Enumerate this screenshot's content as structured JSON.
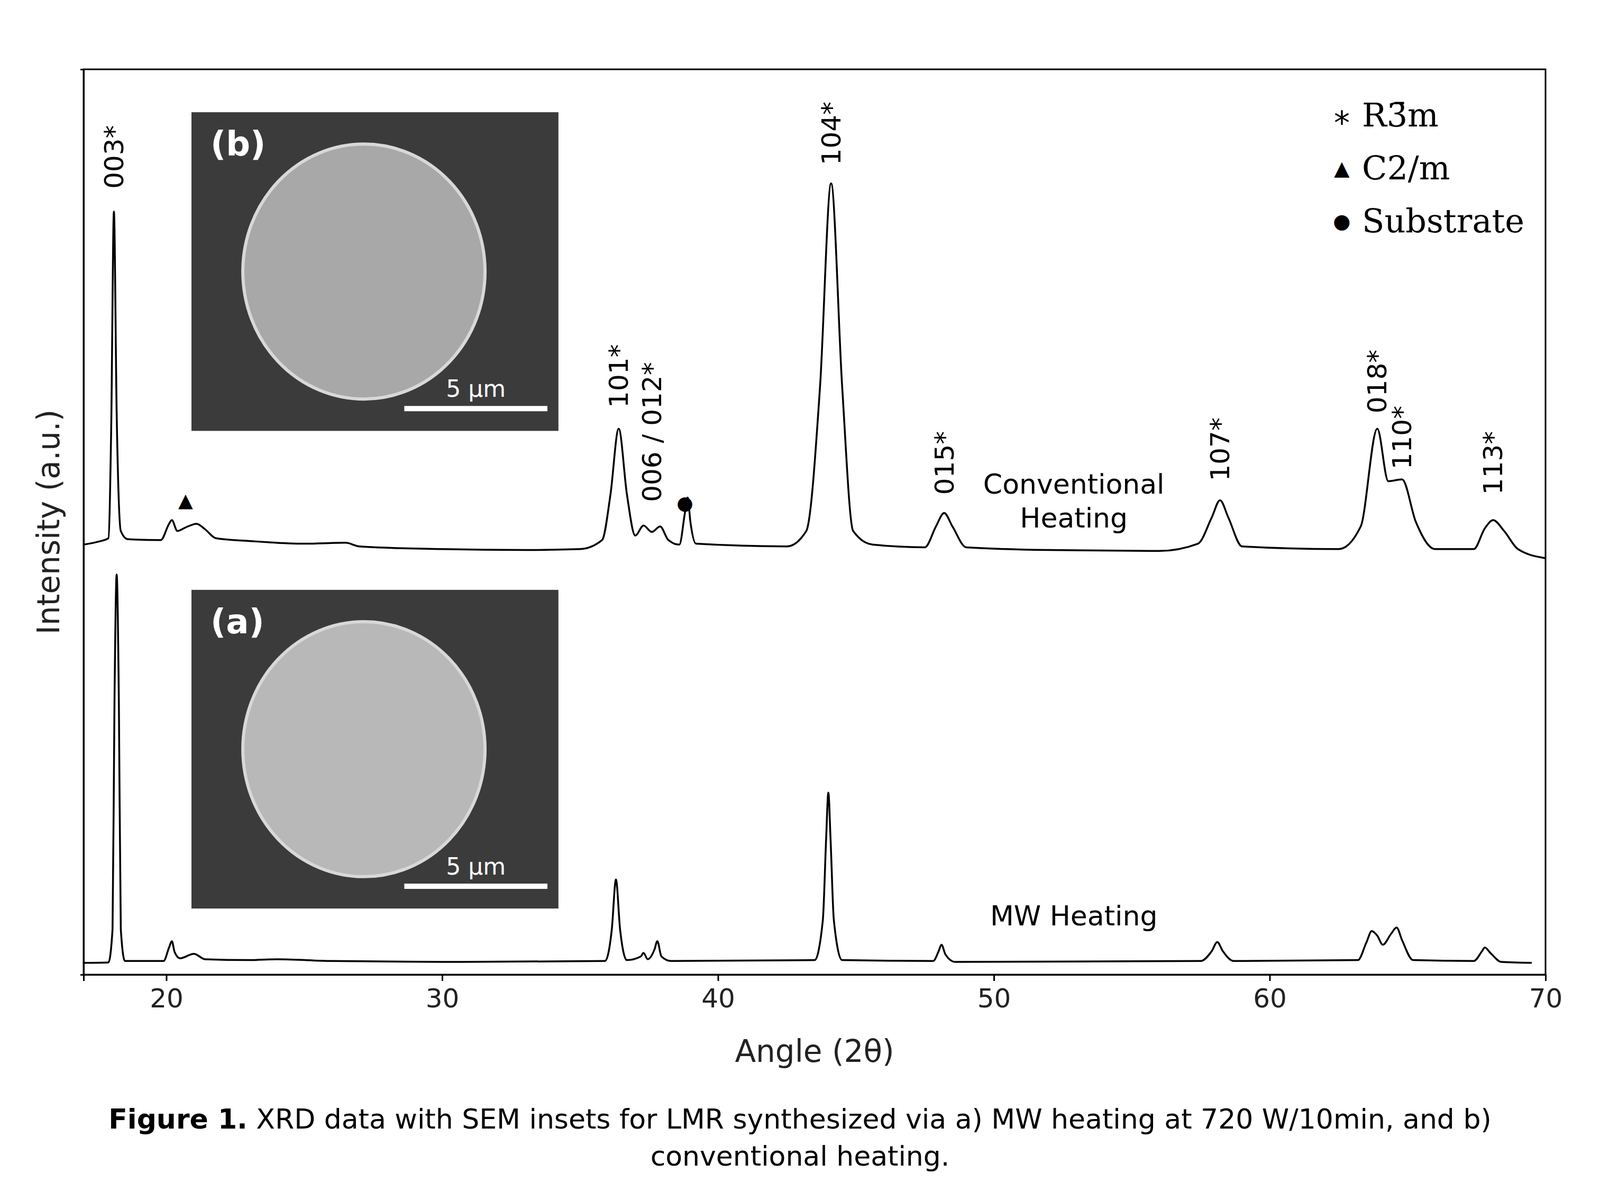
{
  "chart_data": {
    "type": "line",
    "x_label": "Angle (2θ)",
    "y_label": "Intensity (a.u.)",
    "xlim": [
      17,
      70
    ],
    "xticks": [
      20,
      30,
      40,
      50,
      60,
      70
    ],
    "ylim": [
      0,
      100
    ],
    "yticks": [],
    "tick_labels": "x",
    "grid": false,
    "legend": "upper right",
    "legend_entries": [
      {
        "symbol": "*",
        "label": "R3̄m"
      },
      {
        "symbol": "▲",
        "label": "C2/m"
      },
      {
        "symbol": "●",
        "label": "Substrate"
      }
    ],
    "series": [
      {
        "name": "Conventional Heating",
        "color": "#000000",
        "x": [
          17.0,
          17.5,
          17.9,
          18.0,
          18.1,
          18.2,
          18.35,
          18.6,
          19.8,
          20.1,
          20.2,
          20.4,
          20.7,
          21.1,
          21.4,
          21.8,
          23.0,
          25.0,
          26.5,
          27.0,
          30.0,
          33.0,
          35.0,
          35.8,
          36.1,
          36.4,
          36.7,
          37.0,
          37.3,
          37.6,
          37.9,
          38.2,
          38.6,
          38.8,
          38.9,
          39.0,
          39.2,
          42.5,
          43.2,
          43.7,
          44.1,
          44.5,
          44.9,
          45.6,
          47.5,
          47.9,
          48.2,
          48.5,
          49.0,
          52.0,
          56.0,
          57.4,
          57.9,
          58.2,
          58.5,
          59.0,
          62.5,
          63.3,
          63.9,
          64.3,
          64.8,
          65.3,
          66.0,
          67.4,
          67.8,
          68.1,
          68.5,
          69.0,
          70.0
        ],
        "values": [
          47.5,
          47.8,
          48.2,
          60,
          84.3,
          62,
          49,
          48.1,
          48.0,
          49.8,
          50.2,
          49.0,
          49.4,
          49.8,
          49.2,
          48.2,
          47.9,
          47.6,
          47.7,
          47.3,
          47.0,
          46.9,
          47.0,
          48.0,
          53,
          60.3,
          53,
          48.5,
          49.6,
          48.9,
          49.5,
          48.0,
          47.5,
          51,
          52.7,
          50,
          47.6,
          47.3,
          49,
          65,
          87.4,
          65,
          49,
          47.5,
          47.2,
          49.5,
          51.0,
          49.5,
          47.2,
          46.9,
          46.8,
          47.6,
          50.5,
          52.4,
          50.5,
          47.3,
          47.0,
          49.5,
          60.3,
          54.5,
          54.7,
          50.0,
          47.0,
          47.0,
          49.3,
          50.2,
          49.0,
          47.0,
          46.0
        ]
      },
      {
        "name": "MW Heating",
        "color": "#000000",
        "x": [
          17.0,
          17.9,
          18.05,
          18.12,
          18.2,
          18.28,
          18.35,
          18.5,
          19.9,
          20.1,
          20.2,
          20.3,
          20.5,
          21.0,
          21.4,
          23.0,
          24.0,
          26.0,
          30.0,
          35.9,
          36.15,
          36.3,
          36.45,
          36.7,
          37.2,
          37.3,
          37.45,
          37.7,
          37.8,
          37.95,
          38.3,
          43.5,
          43.8,
          43.92,
          44.0,
          44.08,
          44.2,
          44.5,
          47.8,
          48.0,
          48.1,
          48.25,
          48.6,
          57.5,
          57.9,
          58.1,
          58.3,
          58.7,
          63.2,
          63.5,
          63.7,
          63.9,
          64.1,
          64.4,
          64.6,
          64.8,
          65.2,
          67.4,
          67.7,
          67.8,
          68.0,
          68.4,
          69.5
        ],
        "values": [
          1.3,
          1.35,
          5,
          30,
          44.2,
          30,
          5,
          1.5,
          1.5,
          3,
          3.7,
          2.5,
          1.8,
          2.3,
          1.7,
          1.6,
          1.7,
          1.5,
          1.4,
          1.5,
          5,
          10.5,
          5,
          1.6,
          2.0,
          2.4,
          1.7,
          2.8,
          3.7,
          2.0,
          1.5,
          1.6,
          6,
          15,
          20.1,
          15,
          6,
          1.6,
          1.5,
          2.6,
          3.3,
          2.2,
          1.4,
          1.5,
          2.6,
          3.6,
          2.6,
          1.5,
          1.6,
          3.5,
          4.8,
          4.3,
          3.3,
          4.5,
          5.2,
          3.8,
          1.6,
          1.5,
          2.6,
          3.0,
          2.4,
          1.4,
          1.3
        ]
      }
    ],
    "annotations": [
      {
        "text": "003*",
        "x": 18.1,
        "y": 86.8
      },
      {
        "text": "101*",
        "x": 36.4,
        "y": 62.6
      },
      {
        "text": "006 / 012*",
        "x": 37.6,
        "y": 52.2
      },
      {
        "text": "104*",
        "x": 44.1,
        "y": 89.4
      },
      {
        "text": "015*",
        "x": 48.2,
        "y": 53.0
      },
      {
        "text": "107*",
        "x": 58.2,
        "y": 54.5
      },
      {
        "text": "018*",
        "x": 63.9,
        "y": 62.0
      },
      {
        "text": "110*",
        "x": 64.8,
        "y": 55.8
      },
      {
        "text": "113*",
        "x": 68.1,
        "y": 53.0
      }
    ],
    "phase_markers": [
      {
        "symbol": "▲",
        "x": 20.7,
        "y": 52.4
      },
      {
        "symbol": "●",
        "x": 38.8,
        "y": 52.1
      }
    ],
    "trace_labels": [
      {
        "text": "Conventional Heating",
        "x": 52.9,
        "y": 52.3
      },
      {
        "text": "MW Heating",
        "x": 52.9,
        "y": 6.5
      }
    ],
    "insets": [
      {
        "label": "(b)",
        "scale_bar": "5 µm"
      },
      {
        "label": "(a)",
        "scale_bar": "5 µm"
      }
    ],
    "caption": {
      "label": "Figure 1.",
      "text": " XRD data with SEM insets for LMR synthesized via a) MW heating at 720 W/10min, and b) conventional heating."
    }
  }
}
